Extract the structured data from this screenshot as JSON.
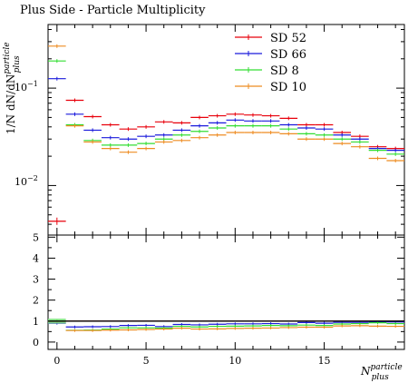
{
  "chart_data": [
    {
      "type": "line",
      "title": "Plus Side - Particle Multiplicity",
      "xlabel": "N_plus^particle",
      "ylabel": "1/N dN/dN_plus^particle",
      "yscale": "log",
      "ylim": [
        0.0031,
        0.45
      ],
      "xlim": [
        -0.5,
        19.5
      ],
      "grid": false,
      "legend_position": "top-right",
      "ytick_labels": [
        "10^-2",
        "10^-1"
      ],
      "x": [
        0,
        1,
        2,
        3,
        4,
        5,
        6,
        7,
        8,
        9,
        10,
        11,
        12,
        13,
        14,
        15,
        16,
        17,
        18,
        19
      ],
      "series": [
        {
          "name": "SD 52",
          "color": "#e8000b",
          "values": [
            0.0043,
            0.075,
            0.051,
            0.042,
            0.038,
            0.04,
            0.045,
            0.044,
            0.05,
            0.052,
            0.054,
            0.053,
            0.052,
            0.049,
            0.042,
            0.042,
            0.035,
            0.032,
            0.025,
            0.024
          ]
        },
        {
          "name": "SD 66",
          "color": "#1a1adc",
          "values": [
            0.125,
            0.054,
            0.037,
            0.031,
            0.03,
            0.032,
            0.033,
            0.037,
            0.041,
            0.044,
            0.047,
            0.046,
            0.046,
            0.042,
            0.039,
            0.038,
            0.033,
            0.03,
            0.024,
            0.023
          ]
        },
        {
          "name": "SD 8",
          "color": "#33dd33",
          "values": [
            0.19,
            0.042,
            0.029,
            0.026,
            0.026,
            0.027,
            0.03,
            0.033,
            0.036,
            0.039,
            0.041,
            0.041,
            0.041,
            0.038,
            0.034,
            0.033,
            0.03,
            0.028,
            0.023,
            0.021
          ]
        },
        {
          "name": "SD 10",
          "color": "#ee8c22",
          "values": [
            0.27,
            0.041,
            0.028,
            0.024,
            0.022,
            0.024,
            0.028,
            0.029,
            0.031,
            0.033,
            0.035,
            0.035,
            0.035,
            0.034,
            0.03,
            0.03,
            0.027,
            0.025,
            0.019,
            0.018
          ]
        }
      ]
    },
    {
      "type": "line",
      "title": "",
      "xlabel": "N_plus^particle",
      "ylabel": "",
      "ylim": [
        -0.35,
        5.1
      ],
      "xlim": [
        -0.5,
        19.5
      ],
      "xtick_labels": [
        "0",
        "5",
        "10",
        "15"
      ],
      "ytick_labels": [
        "0",
        "1",
        "2",
        "3",
        "4",
        "5"
      ],
      "reference_line": 1,
      "series": [
        {
          "name": "SD 52",
          "color": "#e8000b",
          "values": [
            1.0,
            1.0,
            1.0,
            1.0,
            1.0,
            1.0,
            1.0,
            1.0,
            1.0,
            1.0,
            1.0,
            1.0,
            1.0,
            1.0,
            1.0,
            1.0,
            1.0,
            1.0,
            1.0,
            1.0
          ]
        },
        {
          "name": "SD 66",
          "color": "#1a1adc",
          "values": [
            0.9,
            0.72,
            0.73,
            0.74,
            0.79,
            0.8,
            0.74,
            0.84,
            0.82,
            0.85,
            0.87,
            0.87,
            0.88,
            0.86,
            0.93,
            0.9,
            0.94,
            0.94,
            0.96,
            0.96
          ]
        },
        {
          "name": "SD 8",
          "color": "#33dd33",
          "values": [
            1.02,
            0.56,
            0.57,
            0.62,
            0.68,
            0.68,
            0.67,
            0.75,
            0.72,
            0.75,
            0.76,
            0.77,
            0.79,
            0.78,
            0.81,
            0.79,
            0.86,
            0.88,
            0.92,
            0.88
          ]
        },
        {
          "name": "SD 10",
          "color": "#ee8c22",
          "values": [
            0.98,
            0.55,
            0.55,
            0.57,
            0.58,
            0.6,
            0.62,
            0.66,
            0.62,
            0.63,
            0.65,
            0.66,
            0.67,
            0.69,
            0.71,
            0.71,
            0.77,
            0.78,
            0.76,
            0.75
          ]
        }
      ]
    }
  ],
  "labels": {
    "title": "Plus Side - Particle Multiplicity",
    "ytick_1e_2_base": "10",
    "ytick_1e_2_exp": "−2",
    "ytick_1e_1_base": "10",
    "ytick_1e_1_exp": "−1",
    "ylabel_main": "1/N dN/dN",
    "ylabel_sup": "particle",
    "ylabel_sub": "plus",
    "xlabel_main": "N",
    "xlabel_sup": "particle",
    "xlabel_sub": "plus"
  }
}
